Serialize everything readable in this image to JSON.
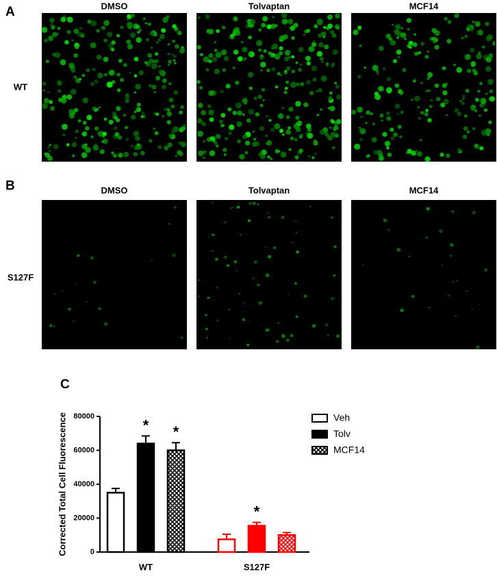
{
  "panels": [
    {
      "label": "A",
      "row_label": "WT",
      "columns": [
        "DMSO",
        "Tolvaptan",
        "MCF14"
      ]
    },
    {
      "label": "B",
      "row_label": "S127F",
      "columns": [
        "DMSO",
        "Tolvaptan",
        "MCF14"
      ]
    }
  ],
  "chart_data": {
    "type": "bar",
    "panel_label": "C",
    "y_label": "Corrected Total Cell Fluorescence",
    "categories": [
      "WT",
      "S127F"
    ],
    "category_colors": [
      "#000000",
      "#ff0000"
    ],
    "series": [
      {
        "name": "Veh",
        "style": "outline",
        "values": [
          35000,
          7500
        ],
        "errors": [
          2500,
          3000
        ],
        "annotations": [
          null,
          null
        ]
      },
      {
        "name": "Tolv",
        "style": "solid",
        "values": [
          64000,
          15500
        ],
        "errors": [
          4500,
          2000
        ],
        "annotations": [
          "*",
          "*"
        ]
      },
      {
        "name": "MCF14",
        "style": "hatch",
        "values": [
          60000,
          10000
        ],
        "errors": [
          4500,
          1500
        ],
        "annotations": [
          "*",
          null
        ]
      }
    ],
    "ylim": [
      0,
      80000
    ],
    "yticks": [
      0,
      20000,
      40000,
      60000,
      80000
    ],
    "legend": "upper right"
  }
}
